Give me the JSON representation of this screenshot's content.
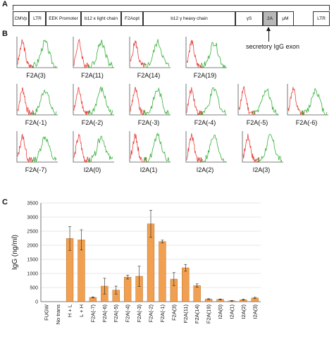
{
  "panels": {
    "a": "A",
    "b": "B",
    "c": "C"
  },
  "construct": {
    "segments": [
      "CMVp",
      "LTR",
      "EEK Promoter",
      "b12 κ light chain",
      "F2Aopt",
      "b12 γ heavy chain",
      "γS",
      "2A",
      "μM",
      "LTR"
    ],
    "annotation": "secretory IgG exon"
  },
  "flow_panels": [
    "F2A(3)",
    "F2A(11)",
    "F2A(14)",
    "F2A(19)",
    "F2A(-1)",
    "F2A(-2)",
    "F2A(-3)",
    "F2A(-4)",
    "F2A(-5)",
    "F2A(-6)",
    "F2A(-7)",
    "I2A(0)",
    "I2A(1)",
    "I2A(2)",
    "I2A(3)"
  ],
  "colors": {
    "control": "#e8413c",
    "sample": "#36b03a",
    "bar": "#f0a050",
    "bar_edge": "#a35a1a"
  },
  "chart_data": {
    "type": "bar",
    "ylabel": "IgG (ng/ml)",
    "ylim": [
      0,
      3500
    ],
    "yticks": [
      "0",
      "500",
      "1000",
      "1500",
      "2000",
      "2500",
      "3000",
      "3500"
    ],
    "categories": [
      "FUGW",
      "No trans",
      "H + L",
      "L + H",
      "F2A(-7)",
      "F2A(-6)",
      "F2A(-5)",
      "F2A(-4)",
      "F2A(-3)",
      "F2A(-2)",
      "F2A(-1)",
      "F2A(3)",
      "F2A(11)",
      "F2A(14)",
      "F2A(19)",
      "I2A(0)",
      "I2A(1)",
      "I2A(2)",
      "I2A(3)"
    ],
    "values": [
      0,
      0,
      2240,
      2190,
      150,
      550,
      410,
      870,
      900,
      2760,
      2130,
      800,
      1200,
      570,
      90,
      80,
      30,
      70,
      130
    ],
    "errors": [
      0,
      0,
      420,
      360,
      20,
      280,
      140,
      70,
      360,
      480,
      50,
      230,
      120,
      60,
      15,
      15,
      10,
      20,
      25
    ],
    "grid": true
  }
}
